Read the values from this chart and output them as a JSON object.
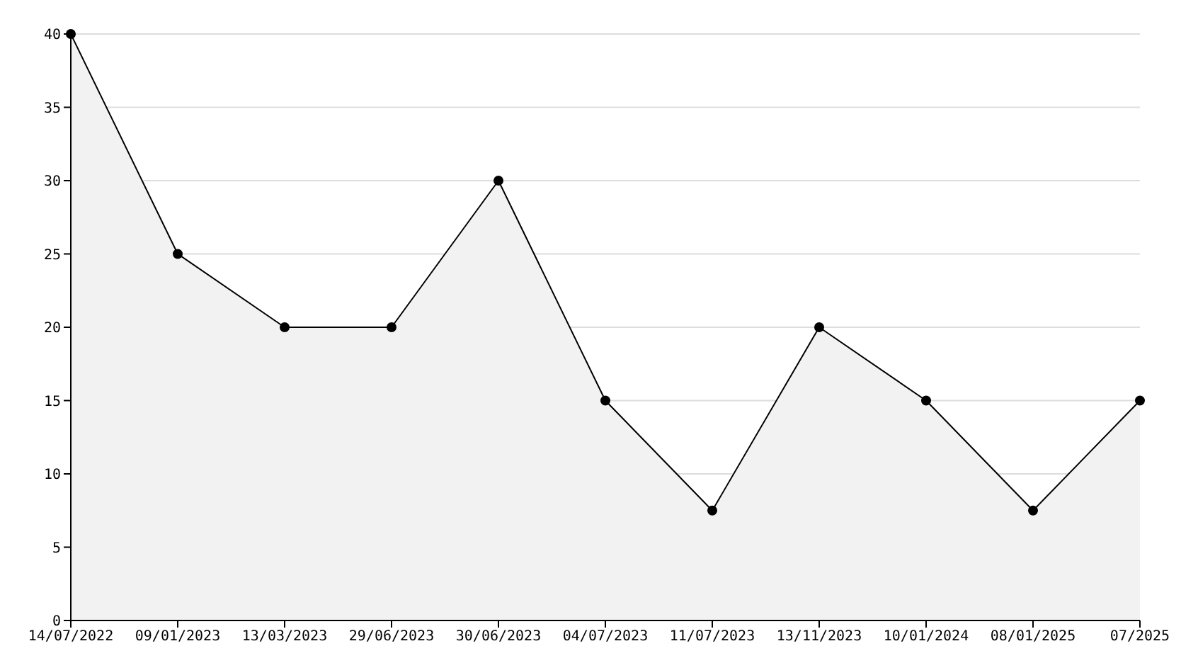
{
  "chart_data": {
    "type": "area",
    "categories": [
      "14/07/2022",
      "09/01/2023",
      "13/03/2023",
      "29/06/2023",
      "30/06/2023",
      "04/07/2023",
      "11/07/2023",
      "13/11/2023",
      "10/01/2024",
      "08/01/2025",
      "07/2025"
    ],
    "series": [
      {
        "color": "#000000",
        "values": [
          40,
          25,
          20,
          20,
          30,
          15,
          7.5,
          20,
          15,
          7.5,
          15
        ]
      }
    ],
    "ylim": [
      0,
      40
    ],
    "yticks": [
      0,
      5,
      10,
      15,
      20,
      25,
      30,
      35,
      40
    ],
    "grid": "y",
    "marker": "circle",
    "line_style": "solid",
    "legend": false
  }
}
